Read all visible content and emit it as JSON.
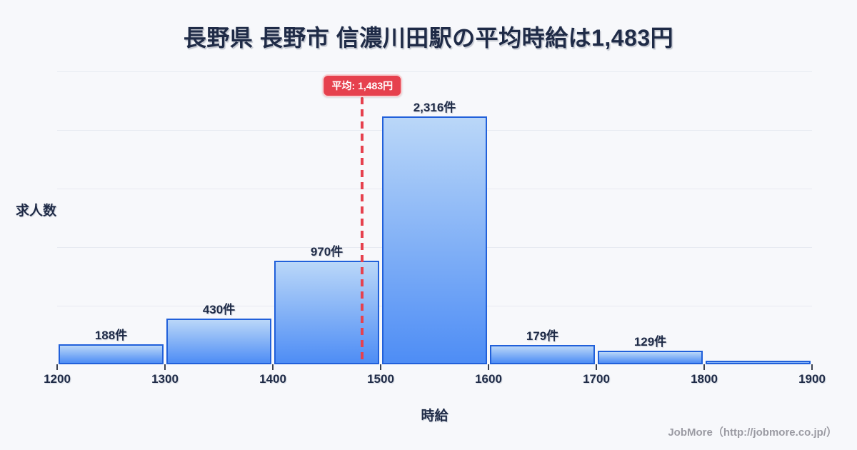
{
  "title": "長野県 長野市 信濃川田駅の平均時給は1,483円",
  "axes": {
    "y_label": "求人数",
    "x_label": "時給"
  },
  "footer": "JobMore（http://jobmore.co.jp/）",
  "average_badge": {
    "label": "平均: 1,483円"
  },
  "chart_data": {
    "type": "bar",
    "subtype": "histogram",
    "title": "長野県 長野市 信濃川田駅の平均時給は1,483円",
    "xlabel": "時給",
    "ylabel": "求人数",
    "bin_edges": [
      1200,
      1300,
      1400,
      1500,
      1600,
      1700,
      1800,
      1900
    ],
    "x_ticks": [
      "1200",
      "1300",
      "1400",
      "1500",
      "1600",
      "1700",
      "1800",
      "1900"
    ],
    "values": [
      188,
      430,
      970,
      2316,
      179,
      129,
      null
    ],
    "bar_labels": [
      "188件",
      "430件",
      "970件",
      "2,316件",
      "179件",
      "129件",
      ""
    ],
    "average_line": {
      "x": 1483,
      "label": "平均: 1,483円",
      "style": "dashed-red"
    },
    "xlim": [
      1200,
      1900
    ],
    "ylim": [
      0,
      2740
    ],
    "grid": "horizontal",
    "legend": "none"
  },
  "colors": {
    "background": "#f7f8fb",
    "title_text": "#1f2b47",
    "bar_border": "#2160da",
    "bar_fill_top": "#bad7f8",
    "bar_fill_bottom": "#4e8df5",
    "average_red": "#e6414e",
    "gridline": "#e7eaf1",
    "tick": "#3c4250",
    "footer_text": "#9b9ba3"
  }
}
